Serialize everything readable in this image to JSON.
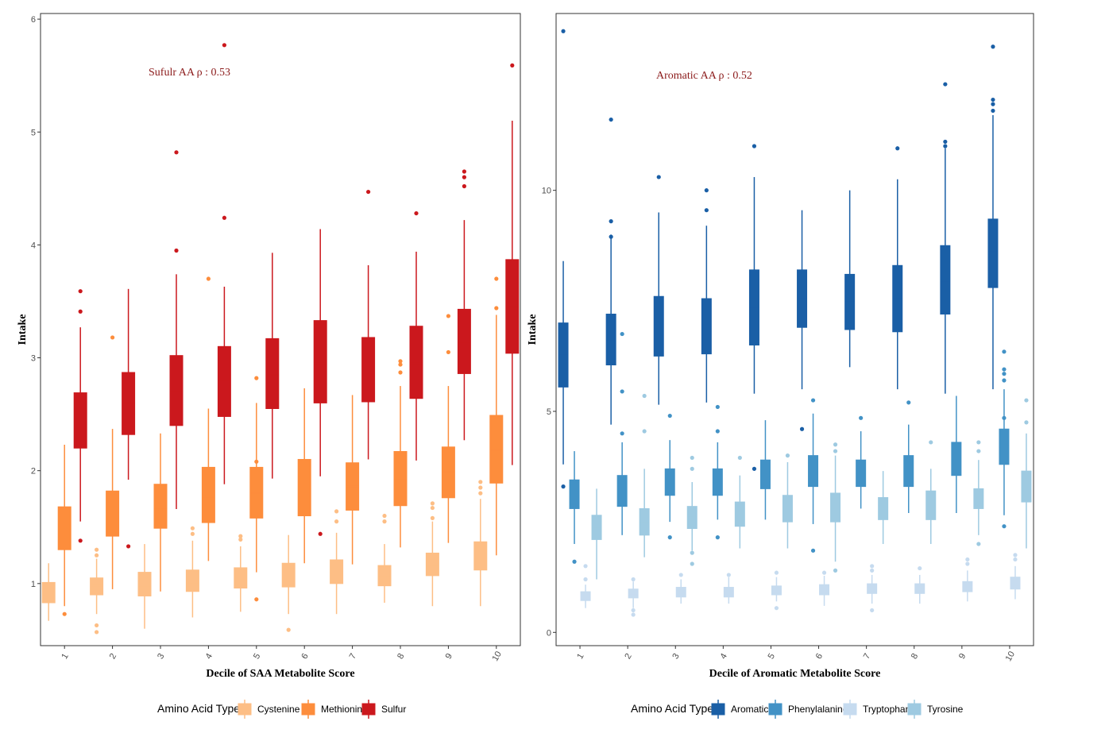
{
  "chart_data": [
    {
      "type": "box",
      "xlabel": "Decile of SAA Metabolite Score",
      "ylabel": "Intake",
      "ylim": [
        0.45,
        6.05
      ],
      "yticks": [
        "1",
        "2",
        "3",
        "4",
        "5",
        "6"
      ],
      "categories": [
        "1",
        "2",
        "3",
        "4",
        "5",
        "6",
        "7",
        "8",
        "9",
        "10"
      ],
      "annotation": {
        "text": "Sufulr AA ρ : 0.53",
        "color": "#8b1a1a"
      },
      "legend": {
        "title": "Amino Acid Type",
        "position": "bottom"
      },
      "series": [
        {
          "name": "Cystenine",
          "color": "#fdbe85",
          "boxes": [
            {
              "wlo": 0.67,
              "q1": 0.83,
              "med": 0.92,
              "q3": 1.01,
              "whi": 1.18,
              "out": []
            },
            {
              "wlo": 0.73,
              "q1": 0.9,
              "med": 0.98,
              "q3": 1.05,
              "whi": 1.22,
              "out": [
                0.63,
                0.57,
                1.3,
                1.25
              ]
            },
            {
              "wlo": 0.6,
              "q1": 0.89,
              "med": 0.97,
              "q3": 1.1,
              "whi": 1.35,
              "out": []
            },
            {
              "wlo": 0.7,
              "q1": 0.93,
              "med": 1.0,
              "q3": 1.12,
              "whi": 1.38,
              "out": [
                1.49,
                1.44
              ]
            },
            {
              "wlo": 0.75,
              "q1": 0.96,
              "med": 1.03,
              "q3": 1.14,
              "whi": 1.33,
              "out": [
                1.42,
                1.39
              ]
            },
            {
              "wlo": 0.73,
              "q1": 0.97,
              "med": 1.06,
              "q3": 1.18,
              "whi": 1.43,
              "out": [
                0.59
              ]
            },
            {
              "wlo": 0.73,
              "q1": 1.0,
              "med": 1.08,
              "q3": 1.21,
              "whi": 1.45,
              "out": [
                1.64,
                1.55
              ]
            },
            {
              "wlo": 0.83,
              "q1": 0.98,
              "med": 1.06,
              "q3": 1.16,
              "whi": 1.35,
              "out": [
                1.6,
                1.55
              ]
            },
            {
              "wlo": 0.8,
              "q1": 1.07,
              "med": 1.16,
              "q3": 1.27,
              "whi": 1.55,
              "out": [
                1.71,
                1.67,
                1.58
              ]
            },
            {
              "wlo": 0.8,
              "q1": 1.12,
              "med": 1.22,
              "q3": 1.37,
              "whi": 1.75,
              "out": [
                1.9,
                1.85,
                1.8
              ]
            }
          ]
        },
        {
          "name": "Methionine",
          "color": "#fd8d3c",
          "boxes": [
            {
              "wlo": 0.8,
              "q1": 1.3,
              "med": 1.5,
              "q3": 1.68,
              "whi": 2.23,
              "out": [
                0.73
              ]
            },
            {
              "wlo": 0.95,
              "q1": 1.42,
              "med": 1.62,
              "q3": 1.82,
              "whi": 2.37,
              "out": [
                3.18
              ]
            },
            {
              "wlo": 0.93,
              "q1": 1.49,
              "med": 1.67,
              "q3": 1.88,
              "whi": 2.33,
              "out": [
                1.65
              ]
            },
            {
              "wlo": 1.2,
              "q1": 1.54,
              "med": 1.77,
              "q3": 2.03,
              "whi": 2.55,
              "out": [
                3.7
              ]
            },
            {
              "wlo": 1.1,
              "q1": 1.58,
              "med": 1.8,
              "q3": 2.03,
              "whi": 2.6,
              "out": [
                2.82,
                2.08,
                0.86
              ]
            },
            {
              "wlo": 1.18,
              "q1": 1.6,
              "med": 1.85,
              "q3": 2.1,
              "whi": 2.73,
              "out": []
            },
            {
              "wlo": 1.17,
              "q1": 1.65,
              "med": 1.86,
              "q3": 2.07,
              "whi": 2.67,
              "out": []
            },
            {
              "wlo": 1.32,
              "q1": 1.69,
              "med": 1.92,
              "q3": 2.17,
              "whi": 2.75,
              "out": [
                2.97,
                2.94,
                2.87
              ]
            },
            {
              "wlo": 1.36,
              "q1": 1.76,
              "med": 1.99,
              "q3": 2.21,
              "whi": 2.75,
              "out": [
                3.37,
                3.05
              ]
            },
            {
              "wlo": 1.25,
              "q1": 1.89,
              "med": 2.18,
              "q3": 2.49,
              "whi": 3.38,
              "out": [
                3.7,
                3.44
              ]
            }
          ]
        },
        {
          "name": "Sulfur",
          "color": "#cb181d",
          "boxes": [
            {
              "wlo": 1.55,
              "q1": 2.2,
              "med": 2.45,
              "q3": 2.69,
              "whi": 3.27,
              "out": [
                3.59,
                3.41,
                1.38
              ]
            },
            {
              "wlo": 1.92,
              "q1": 2.32,
              "med": 2.6,
              "q3": 2.87,
              "whi": 3.61,
              "out": [
                1.33
              ]
            },
            {
              "wlo": 1.66,
              "q1": 2.4,
              "med": 2.7,
              "q3": 3.02,
              "whi": 3.74,
              "out": [
                4.82,
                3.95
              ]
            },
            {
              "wlo": 1.88,
              "q1": 2.48,
              "med": 2.8,
              "q3": 3.1,
              "whi": 3.63,
              "out": [
                5.77,
                4.24
              ]
            },
            {
              "wlo": 1.93,
              "q1": 2.55,
              "med": 2.85,
              "q3": 3.17,
              "whi": 3.93,
              "out": []
            },
            {
              "wlo": 1.95,
              "q1": 2.6,
              "med": 2.95,
              "q3": 3.33,
              "whi": 4.14,
              "out": [
                1.44
              ]
            },
            {
              "wlo": 2.1,
              "q1": 2.61,
              "med": 2.9,
              "q3": 3.18,
              "whi": 3.82,
              "out": [
                4.47
              ]
            },
            {
              "wlo": 2.09,
              "q1": 2.64,
              "med": 2.95,
              "q3": 3.28,
              "whi": 3.94,
              "out": [
                4.28
              ]
            },
            {
              "wlo": 2.27,
              "q1": 2.86,
              "med": 3.14,
              "q3": 3.43,
              "whi": 4.22,
              "out": [
                4.65,
                4.6,
                4.52
              ]
            },
            {
              "wlo": 2.05,
              "q1": 3.04,
              "med": 3.45,
              "q3": 3.87,
              "whi": 5.1,
              "out": [
                5.59
              ]
            }
          ]
        }
      ]
    },
    {
      "type": "box",
      "xlabel": "Decile of Aromatic Metabolite Score",
      "ylabel": "Intake",
      "ylim": [
        -0.3,
        14.0
      ],
      "yticks": [
        "0",
        "5",
        "10"
      ],
      "categories": [
        "1",
        "2",
        "3",
        "4",
        "5",
        "6",
        "7",
        "8",
        "9",
        "10"
      ],
      "annotation": {
        "text": "Aromatic AA ρ : 0.52",
        "color": "#8b1a1a"
      },
      "legend": {
        "title": "Amino Acid Type",
        "position": "bottom"
      },
      "series": [
        {
          "name": "Aromatic",
          "color": "#1a5fa6",
          "boxes": [
            {
              "wlo": 3.8,
              "q1": 5.55,
              "med": 6.3,
              "q3": 7.0,
              "whi": 8.4,
              "out": [
                13.6,
                3.3
              ]
            },
            {
              "wlo": 4.7,
              "q1": 6.05,
              "med": 6.6,
              "q3": 7.2,
              "whi": 9.0,
              "out": [
                11.6,
                9.3,
                8.95
              ]
            },
            {
              "wlo": 5.15,
              "q1": 6.25,
              "med": 6.95,
              "q3": 7.6,
              "whi": 9.5,
              "out": [
                10.3
              ]
            },
            {
              "wlo": 5.2,
              "q1": 6.3,
              "med": 6.95,
              "q3": 7.55,
              "whi": 9.2,
              "out": [
                10.0,
                9.55
              ]
            },
            {
              "wlo": 5.4,
              "q1": 6.5,
              "med": 7.35,
              "q3": 8.2,
              "whi": 10.3,
              "out": [
                11.0,
                3.7
              ]
            },
            {
              "wlo": 5.5,
              "q1": 6.9,
              "med": 7.55,
              "q3": 8.2,
              "whi": 9.55,
              "out": [
                4.6
              ]
            },
            {
              "wlo": 6.0,
              "q1": 6.85,
              "med": 7.5,
              "q3": 8.1,
              "whi": 10.0,
              "out": []
            },
            {
              "wlo": 5.5,
              "q1": 6.8,
              "med": 7.55,
              "q3": 8.3,
              "whi": 10.25,
              "out": [
                10.95
              ]
            },
            {
              "wlo": 5.4,
              "q1": 7.2,
              "med": 7.95,
              "q3": 8.75,
              "whi": 10.95,
              "out": [
                12.4,
                11.1,
                11.0
              ]
            },
            {
              "wlo": 5.5,
              "q1": 7.8,
              "med": 8.6,
              "q3": 9.35,
              "whi": 11.7,
              "out": [
                13.25,
                12.05,
                11.95,
                11.8
              ]
            }
          ]
        },
        {
          "name": "Phenylalanine",
          "color": "#4292c6",
          "boxes": [
            {
              "wlo": 2.0,
              "q1": 2.8,
              "med": 3.1,
              "q3": 3.45,
              "whi": 4.1,
              "out": [
                1.6
              ]
            },
            {
              "wlo": 2.2,
              "q1": 2.85,
              "med": 3.2,
              "q3": 3.55,
              "whi": 4.3,
              "out": [
                6.75,
                5.45,
                4.5
              ]
            },
            {
              "wlo": 2.5,
              "q1": 3.1,
              "med": 3.4,
              "q3": 3.7,
              "whi": 4.35,
              "out": [
                4.9,
                2.15
              ]
            },
            {
              "wlo": 2.55,
              "q1": 3.1,
              "med": 3.4,
              "q3": 3.7,
              "whi": 4.3,
              "out": [
                5.1,
                4.55,
                2.15
              ]
            },
            {
              "wlo": 2.55,
              "q1": 3.25,
              "med": 3.55,
              "q3": 3.9,
              "whi": 4.8,
              "out": []
            },
            {
              "wlo": 2.45,
              "q1": 3.3,
              "med": 3.65,
              "q3": 4.0,
              "whi": 4.95,
              "out": [
                5.25,
                1.85
              ]
            },
            {
              "wlo": 2.8,
              "q1": 3.3,
              "med": 3.6,
              "q3": 3.9,
              "whi": 4.55,
              "out": [
                4.85
              ]
            },
            {
              "wlo": 2.7,
              "q1": 3.3,
              "med": 3.65,
              "q3": 4.0,
              "whi": 4.7,
              "out": [
                5.2
              ]
            },
            {
              "wlo": 2.7,
              "q1": 3.55,
              "med": 3.9,
              "q3": 4.3,
              "whi": 5.35,
              "out": []
            },
            {
              "wlo": 2.65,
              "q1": 3.8,
              "med": 4.2,
              "q3": 4.6,
              "whi": 5.5,
              "out": [
                6.35,
                5.95,
                5.85,
                5.7,
                4.85,
                2.4
              ]
            }
          ]
        },
        {
          "name": "Tryptophan",
          "color": "#c6dbef",
          "boxes": [
            {
              "wlo": 0.55,
              "q1": 0.72,
              "med": 0.8,
              "q3": 0.92,
              "whi": 1.08,
              "out": [
                1.5,
                1.2
              ]
            },
            {
              "wlo": 0.55,
              "q1": 0.78,
              "med": 0.87,
              "q3": 0.98,
              "whi": 1.15,
              "out": [
                1.2,
                0.5,
                0.4
              ]
            },
            {
              "wlo": 0.65,
              "q1": 0.8,
              "med": 0.9,
              "q3": 1.02,
              "whi": 1.2,
              "out": [
                1.3
              ]
            },
            {
              "wlo": 0.65,
              "q1": 0.8,
              "med": 0.9,
              "q3": 1.02,
              "whi": 1.25,
              "out": [
                1.3
              ]
            },
            {
              "wlo": 0.7,
              "q1": 0.85,
              "med": 0.95,
              "q3": 1.05,
              "whi": 1.25,
              "out": [
                1.35,
                0.55
              ]
            },
            {
              "wlo": 0.6,
              "q1": 0.85,
              "med": 0.95,
              "q3": 1.08,
              "whi": 1.28,
              "out": [
                1.35
              ]
            },
            {
              "wlo": 0.65,
              "q1": 0.88,
              "med": 0.98,
              "q3": 1.1,
              "whi": 1.3,
              "out": [
                1.5,
                1.4,
                0.5
              ]
            },
            {
              "wlo": 0.65,
              "q1": 0.88,
              "med": 0.98,
              "q3": 1.1,
              "whi": 1.3,
              "out": [
                1.45
              ]
            },
            {
              "wlo": 0.7,
              "q1": 0.92,
              "med": 1.02,
              "q3": 1.15,
              "whi": 1.4,
              "out": [
                1.65,
                1.55
              ]
            },
            {
              "wlo": 0.75,
              "q1": 0.98,
              "med": 1.1,
              "q3": 1.25,
              "whi": 1.5,
              "out": [
                1.75,
                1.65
              ]
            }
          ]
        },
        {
          "name": "Tyrosine",
          "color": "#9ecae1",
          "boxes": [
            {
              "wlo": 1.2,
              "q1": 2.1,
              "med": 2.35,
              "q3": 2.65,
              "whi": 3.25,
              "out": []
            },
            {
              "wlo": 1.7,
              "q1": 2.2,
              "med": 2.5,
              "q3": 2.8,
              "whi": 3.7,
              "out": [
                5.35,
                4.55
              ]
            },
            {
              "wlo": 1.85,
              "q1": 2.35,
              "med": 2.6,
              "q3": 2.85,
              "whi": 3.4,
              "out": [
                3.7,
                3.95,
                1.55,
                1.8
              ]
            },
            {
              "wlo": 1.9,
              "q1": 2.4,
              "med": 2.65,
              "q3": 2.95,
              "whi": 3.55,
              "out": [
                3.95
              ]
            },
            {
              "wlo": 1.9,
              "q1": 2.5,
              "med": 2.8,
              "q3": 3.1,
              "whi": 3.85,
              "out": [
                4.0
              ]
            },
            {
              "wlo": 1.6,
              "q1": 2.5,
              "med": 2.85,
              "q3": 3.15,
              "whi": 4.0,
              "out": [
                4.25,
                4.1,
                1.4
              ]
            },
            {
              "wlo": 2.0,
              "q1": 2.55,
              "med": 2.85,
              "q3": 3.05,
              "whi": 3.65,
              "out": []
            },
            {
              "wlo": 2.0,
              "q1": 2.55,
              "med": 2.85,
              "q3": 3.2,
              "whi": 3.7,
              "out": [
                4.3
              ]
            },
            {
              "wlo": 2.2,
              "q1": 2.8,
              "med": 3.0,
              "q3": 3.25,
              "whi": 3.9,
              "out": [
                4.3,
                4.1,
                2.0
              ]
            },
            {
              "wlo": 1.9,
              "q1": 2.95,
              "med": 3.3,
              "q3": 3.65,
              "whi": 4.5,
              "out": [
                5.25,
                4.75
              ]
            }
          ]
        }
      ]
    }
  ]
}
